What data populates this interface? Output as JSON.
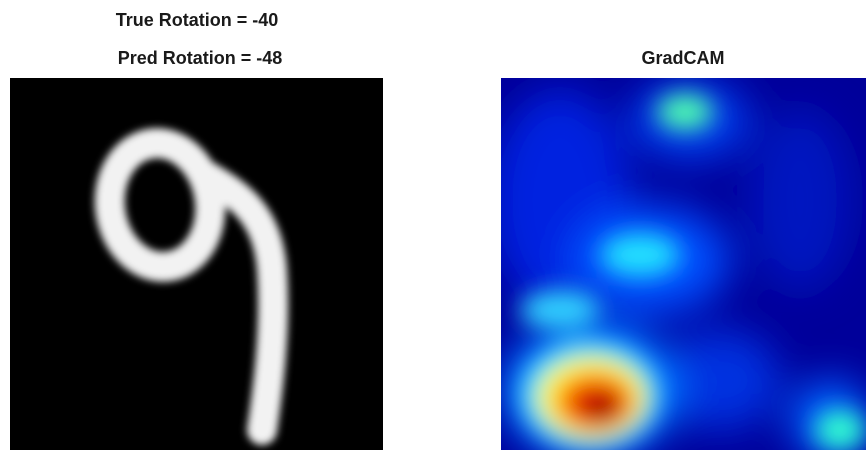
{
  "left_panel": {
    "title_line1": "True Rotation = -40",
    "title_line2": "Pred Rotation = -48"
  },
  "right_panel": {
    "title": "GradCAM"
  }
}
